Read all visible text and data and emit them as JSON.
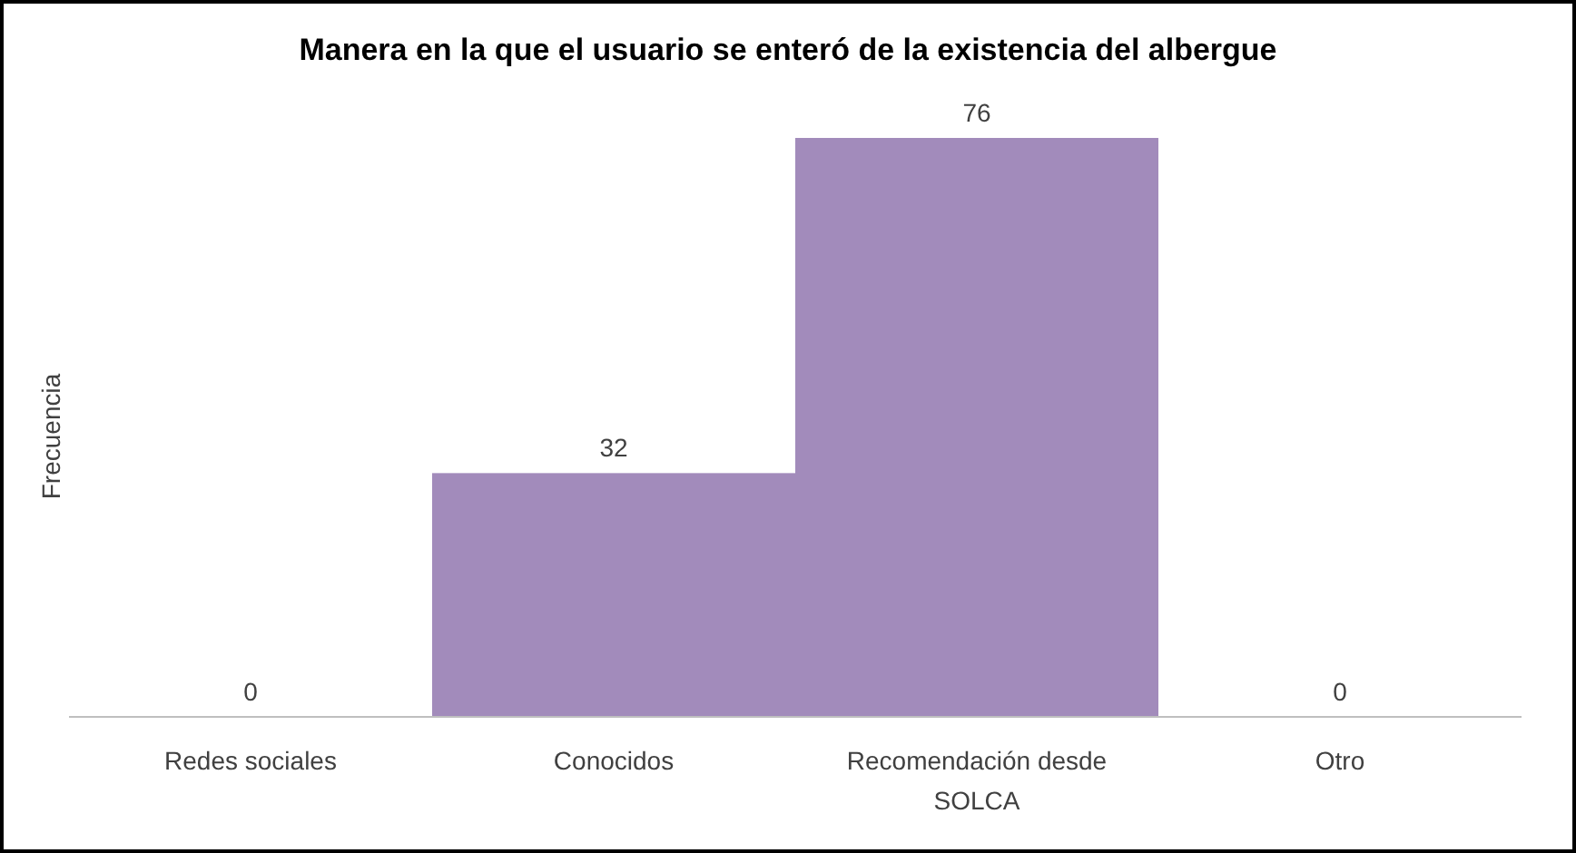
{
  "chart_data": {
    "type": "bar",
    "title": "Manera en la que el usuario se enteró de la existencia del albergue",
    "ylabel": "Frecuencia",
    "categories": [
      "Redes sociales",
      "Conocidos",
      "Recomendación desde SOLCA",
      "Otro"
    ],
    "values": [
      0,
      32,
      76,
      0
    ],
    "color": "#a28bbb",
    "data_labels": true
  }
}
